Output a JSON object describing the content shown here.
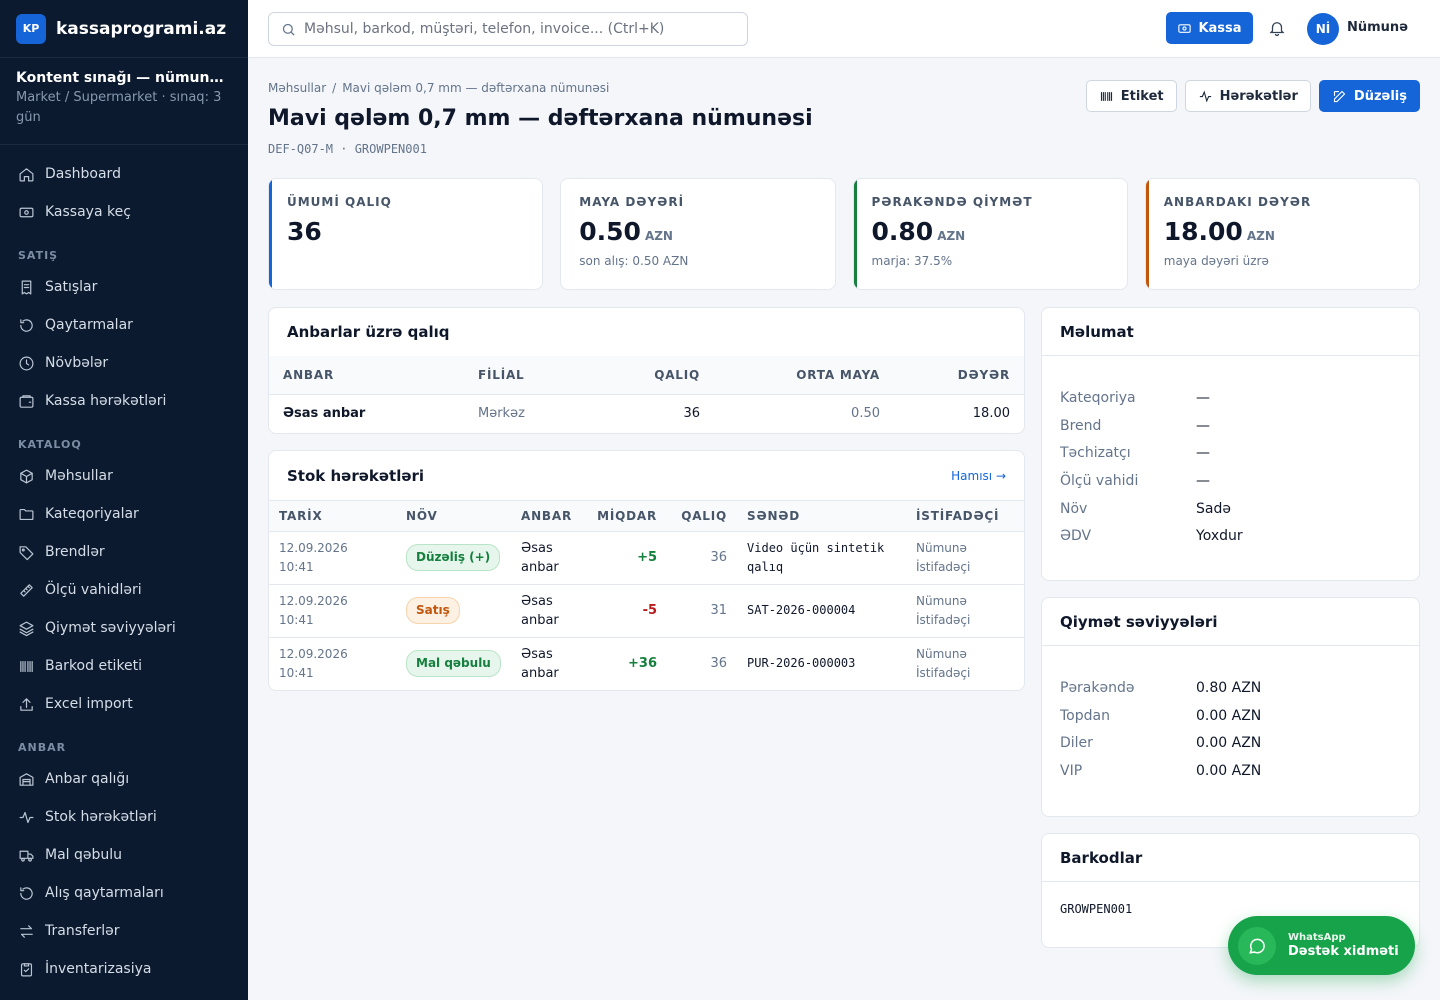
{
  "brand": {
    "logo": "KP",
    "name": "kassaprogrami.az"
  },
  "tenant": {
    "name": "Kontent sınağı — nümun…",
    "sub": "Market / Supermarket · sınaq: 3 gün"
  },
  "nav": {
    "dashboard": "Dashboard",
    "kassaya_kec": "Kassaya keç",
    "section_satis": "SATIŞ",
    "satislar": "Satışlar",
    "qaytarmalar": "Qaytarmalar",
    "novbeler": "Növbələr",
    "kassa_hereketleri": "Kassa hərəkətləri",
    "section_kataloq": "KATALOQ",
    "mehsullar": "Məhsullar",
    "kateqoriyalar": "Kateqoriyalar",
    "brendler": "Brendlər",
    "olcu_vahidleri": "Ölçü vahidləri",
    "qiymet_seviyyeleri": "Qiymət səviyyələri",
    "barkod_etiketi": "Barkod etiketi",
    "excel_import": "Excel import",
    "section_anbar": "ANBAR",
    "anbar_qaligi": "Anbar qalığı",
    "stok_hereketleri": "Stok hərəkətləri",
    "mal_qebulu": "Mal qəbulu",
    "alis_qaytarmalari": "Alış qaytarmaları",
    "transferler": "Transferlər",
    "inventarizasiya": "İnventarizasiya"
  },
  "topbar": {
    "search_placeholder": "Məhsul, barkod, müştəri, telefon, invoice... (Ctrl+K)",
    "kassa": "Kassa",
    "avatar": "Nİ",
    "user": "Nümunə"
  },
  "page": {
    "breadcrumb_root": "Məhsullar",
    "breadcrumb_sep": "/",
    "breadcrumb_current": "Mavi qələm 0,7 mm — dəftərxana nümunəsi",
    "title": "Mavi qələm 0,7 mm — dəftərxana nümunəsi",
    "codes": "DEF-Q07-M · GROWPEN001",
    "actions": {
      "etiket": "Etiket",
      "hereketler": "Hərəkətlər",
      "duzelis": "Düzəliş"
    }
  },
  "stats": [
    {
      "label": "ÜMUMİ QALIQ",
      "value": "36",
      "unit": "",
      "note": ""
    },
    {
      "label": "MAYA DƏYƏRİ",
      "value": "0.50",
      "unit": "AZN",
      "note": "son alış: 0.50 AZN"
    },
    {
      "label": "PƏRAKƏNDƏ QİYMƏT",
      "value": "0.80",
      "unit": "AZN",
      "note": "marja: 37.5%"
    },
    {
      "label": "ANBARDAKI DƏYƏR",
      "value": "18.00",
      "unit": "AZN",
      "note": "maya dəyəri üzrə"
    }
  ],
  "warehouses": {
    "title": "Anbarlar üzrə qalıq",
    "headers": [
      "ANBAR",
      "FİLİAL",
      "QALIQ",
      "ORTA MAYA",
      "DƏYƏR"
    ],
    "rows": [
      {
        "anbar": "Əsas anbar",
        "filial": "Mərkəz",
        "qaliq": "36",
        "orta_maya": "0.50",
        "deyer": "18.00"
      }
    ]
  },
  "movements": {
    "title": "Stok hərəkətləri",
    "link": "Hamısı →",
    "headers": [
      "TARİX",
      "NÖV",
      "ANBAR",
      "MİQDAR",
      "QALIQ",
      "SƏNƏD",
      "İSTİFADƏÇİ"
    ],
    "rows": [
      {
        "tarix": "12.09.2026 10:41",
        "nov": "Düzəliş (+)",
        "anbar": "Əsas anbar",
        "miqdar": "+5",
        "qaliq": "36",
        "sened": "Video üçün sintetik qalıq",
        "istifadeci": "Nümunə İstifadəçi"
      },
      {
        "tarix": "12.09.2026 10:41",
        "nov": "Satış",
        "anbar": "Əsas anbar",
        "miqdar": "-5",
        "qaliq": "31",
        "sened": "SAT-2026-000004",
        "istifadeci": "Nümunə İstifadəçi"
      },
      {
        "tarix": "12.09.2026 10:41",
        "nov": "Mal qəbulu",
        "anbar": "Əsas anbar",
        "miqdar": "+36",
        "qaliq": "36",
        "sened": "PUR-2026-000003",
        "istifadeci": "Nümunə İstifadəçi"
      }
    ]
  },
  "info": {
    "title": "Məlumat",
    "rows": [
      {
        "k": "Kateqoriya",
        "v": "—"
      },
      {
        "k": "Brend",
        "v": "—"
      },
      {
        "k": "Təchizatçı",
        "v": "—"
      },
      {
        "k": "Ölçü vahidi",
        "v": "—"
      },
      {
        "k": "Növ",
        "v": "Sadə"
      },
      {
        "k": "ƏDV",
        "v": "Yoxdur"
      }
    ]
  },
  "prices": {
    "title": "Qiymət səviyyələri",
    "rows": [
      {
        "k": "Pərakəndə",
        "v": "0.80 AZN"
      },
      {
        "k": "Topdan",
        "v": "0.00 AZN"
      },
      {
        "k": "Diler",
        "v": "0.00 AZN"
      },
      {
        "k": "VIP",
        "v": "0.00 AZN"
      }
    ]
  },
  "barcodes": {
    "title": "Barkodlar",
    "value": "GROWPEN001"
  },
  "whatsapp": {
    "small": "WhatsApp",
    "big": "Dəstək xidməti"
  },
  "colors": {
    "accent": "#1565d8",
    "sidebar": "#0b1a2e",
    "green": "#15803d",
    "orange": "#c2570c",
    "red": "#b91c1c"
  }
}
